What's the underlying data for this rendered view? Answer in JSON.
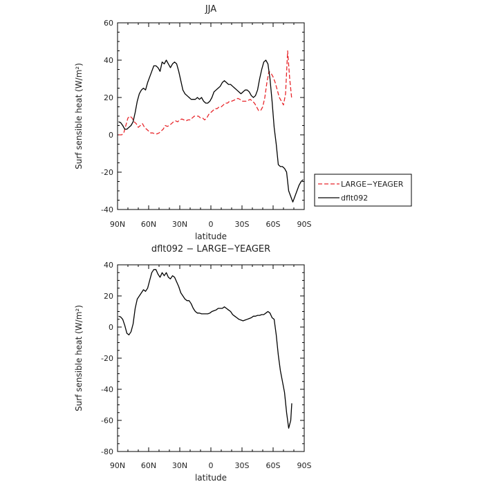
{
  "charts": [
    {
      "type": "line",
      "title": "JJA",
      "xlabel": "latitude",
      "ylabel": "Surf sensible heat (W/m²)",
      "xlim": [
        90,
        -90
      ],
      "ylim": [
        -40,
        60
      ],
      "x_ticks": [
        90,
        60,
        30,
        0,
        -30,
        -60,
        -90
      ],
      "x_tick_labels": [
        "90N",
        "60N",
        "30N",
        "0",
        "30S",
        "60S",
        "90S"
      ],
      "y_ticks": [
        -40,
        -20,
        0,
        20,
        40,
        60
      ],
      "y_tick_labels": [
        "-40",
        "-20",
        "0",
        "20",
        "40",
        "60"
      ],
      "legend_position": "outside-right",
      "series": [
        {
          "name": "LARGE−YEAGER",
          "color": "#e8252a",
          "dash": "dashed",
          "x": [
            89,
            86,
            84,
            82,
            80,
            78,
            76,
            74,
            72,
            70,
            68,
            66,
            64,
            62,
            60,
            58,
            56,
            54,
            52,
            50,
            48,
            46,
            44,
            42,
            40,
            38,
            36,
            34,
            32,
            30,
            28,
            26,
            24,
            22,
            20,
            18,
            16,
            14,
            12,
            10,
            8,
            6,
            4,
            2,
            0,
            -2,
            -4,
            -6,
            -8,
            -10,
            -12,
            -14,
            -16,
            -18,
            -20,
            -22,
            -24,
            -26,
            -28,
            -30,
            -32,
            -34,
            -36,
            -38,
            -40,
            -42,
            -44,
            -46,
            -48,
            -50,
            -52,
            -54,
            -56,
            -58,
            -60,
            -62,
            -64,
            -66,
            -68,
            -70,
            -72,
            -74,
            -76,
            -78
          ],
          "y": [
            0,
            0,
            1,
            5,
            9,
            10,
            9,
            7,
            6,
            4,
            5,
            6,
            4,
            3,
            2,
            1,
            1,
            0.5,
            0.5,
            1,
            2,
            3,
            5,
            4.5,
            5,
            6,
            7,
            7.5,
            7,
            8,
            8.5,
            8,
            7.5,
            8,
            8,
            9,
            10,
            10,
            10,
            9,
            9,
            8,
            9,
            11,
            12,
            13,
            14,
            14,
            15,
            15,
            16,
            17,
            17,
            18,
            18,
            18.5,
            19,
            19.5,
            19,
            18,
            18,
            18,
            18.5,
            19,
            18,
            17,
            15,
            13,
            13,
            15,
            20,
            28,
            34,
            33,
            31,
            28,
            24,
            20,
            18,
            16,
            22,
            45,
            30,
            19
          ]
        },
        {
          "name": "dflt092",
          "color": "#000000",
          "dash": "solid",
          "x": [
            89,
            87,
            85,
            83,
            81,
            79,
            77,
            75,
            73,
            71,
            69,
            67,
            65,
            63,
            61,
            59,
            57,
            55,
            53,
            51,
            49,
            47,
            45,
            43,
            41,
            39,
            37,
            35,
            33,
            31,
            29,
            27,
            25,
            23,
            21,
            19,
            17,
            15,
            13,
            11,
            9,
            7,
            5,
            3,
            1,
            -1,
            -3,
            -5,
            -7,
            -9,
            -11,
            -13,
            -15,
            -17,
            -19,
            -21,
            -23,
            -25,
            -27,
            -29,
            -31,
            -33,
            -35,
            -37,
            -39,
            -41,
            -43,
            -45,
            -47,
            -49,
            -51,
            -53,
            -55,
            -57,
            -59,
            -61,
            -63,
            -65,
            -67,
            -69,
            -71,
            -73,
            -75,
            -77,
            -79,
            -81,
            -83,
            -85,
            -87,
            -89
          ],
          "y": [
            7,
            6.5,
            5,
            3,
            3,
            4,
            5,
            7,
            12,
            18,
            22,
            24,
            25,
            24,
            28,
            31,
            34,
            37,
            37,
            36,
            34,
            39,
            38,
            40,
            38,
            36,
            38,
            39,
            38,
            34,
            29,
            24,
            22,
            21,
            20,
            19,
            19,
            19,
            20,
            19,
            20,
            18,
            17,
            17,
            18,
            20,
            23,
            24,
            25,
            26,
            28,
            29,
            28,
            27,
            27,
            26,
            25,
            24,
            23,
            22,
            23,
            24,
            24,
            23,
            21,
            20,
            21,
            24,
            30,
            35,
            39,
            40,
            38,
            30,
            18,
            4,
            -5,
            -16,
            -17,
            -17,
            -18,
            -20,
            -30,
            -33,
            -36,
            -33,
            -30,
            -27,
            -25,
            -24
          ]
        }
      ]
    },
    {
      "type": "line",
      "title": "dflt092 − LARGE−YEAGER",
      "xlabel": "latitude",
      "ylabel": "Surf sensible heat (W/m²)",
      "xlim": [
        90,
        -90
      ],
      "ylim": [
        -80,
        40
      ],
      "x_ticks": [
        90,
        60,
        30,
        0,
        -30,
        -60,
        -90
      ],
      "x_tick_labels": [
        "90N",
        "60N",
        "30N",
        "0",
        "30S",
        "60S",
        "90S"
      ],
      "y_ticks": [
        -80,
        -60,
        -40,
        -20,
        0,
        20,
        40
      ],
      "y_tick_labels": [
        "-80",
        "-60",
        "-40",
        "-20",
        "0",
        "20",
        "40"
      ],
      "series": [
        {
          "name": "",
          "color": "#000000",
          "dash": "solid",
          "x": [
            89,
            87,
            85,
            83,
            81,
            79,
            77,
            75,
            73,
            71,
            69,
            67,
            65,
            63,
            61,
            59,
            57,
            55,
            53,
            51,
            49,
            47,
            45,
            43,
            41,
            39,
            37,
            35,
            33,
            31,
            29,
            27,
            25,
            23,
            21,
            19,
            17,
            15,
            13,
            11,
            9,
            7,
            5,
            3,
            1,
            -1,
            -3,
            -5,
            -7,
            -9,
            -11,
            -13,
            -15,
            -17,
            -19,
            -21,
            -23,
            -25,
            -27,
            -29,
            -31,
            -33,
            -35,
            -37,
            -39,
            -41,
            -43,
            -45,
            -47,
            -49,
            -51,
            -53,
            -55,
            -57,
            -59,
            -61,
            -63,
            -65,
            -67,
            -69,
            -71,
            -73,
            -75,
            -77,
            -78
          ],
          "y": [
            7,
            6.5,
            5,
            1,
            -4,
            -5,
            -3,
            2,
            12,
            18,
            20,
            22,
            24,
            23,
            25,
            30,
            35,
            37,
            37,
            34,
            32,
            35,
            33,
            35,
            32,
            31,
            33,
            32,
            29,
            26,
            22,
            20,
            18,
            17,
            17,
            15,
            12,
            10,
            9,
            9,
            8.5,
            8.5,
            8.5,
            8.5,
            9,
            10,
            10.5,
            11,
            12,
            12,
            12,
            13,
            12,
            11,
            10,
            8,
            7,
            6,
            5,
            4.5,
            4,
            4.5,
            5,
            5.5,
            6,
            7,
            7,
            7.5,
            7.5,
            8,
            8,
            9,
            10,
            9,
            6,
            5,
            -5,
            -18,
            -28,
            -35,
            -42,
            -55,
            -65,
            -60,
            -49
          ]
        }
      ]
    }
  ]
}
